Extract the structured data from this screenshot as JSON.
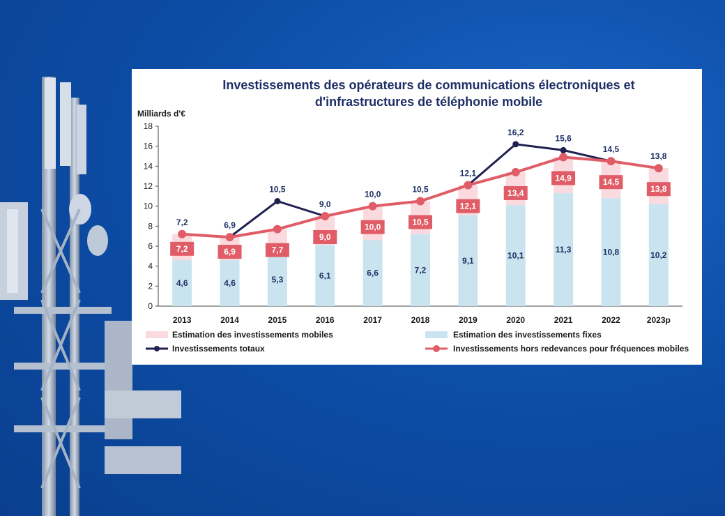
{
  "chart_data": {
    "type": "bar",
    "title_lines": [
      "Investissements des opérateurs de communications électroniques et",
      "d'infrastructures de téléphonie mobile"
    ],
    "ylabel": "Milliards d'€",
    "ylim": [
      0,
      18
    ],
    "yticks": [
      0,
      2,
      4,
      6,
      8,
      10,
      12,
      14,
      16,
      18
    ],
    "categories": [
      "2013",
      "2014",
      "2015",
      "2016",
      "2017",
      "2018",
      "2019",
      "2020",
      "2021",
      "2022",
      "2023p"
    ],
    "stacked_bars": [
      {
        "name": "Estimation des investissements fixes",
        "values": [
          4.6,
          4.6,
          5.3,
          6.1,
          6.6,
          7.2,
          9.1,
          10.1,
          11.3,
          10.8,
          10.2
        ],
        "labels": [
          "4,6",
          "4,6",
          "5,3",
          "6,1",
          "6,6",
          "7,2",
          "9,1",
          "10,1",
          "11,3",
          "10,8",
          "10,2"
        ],
        "color": "#c9e4ee"
      },
      {
        "name": "Estimation des investissements mobiles",
        "totals": [
          7.2,
          6.9,
          7.7,
          9.0,
          10.0,
          10.5,
          12.1,
          13.4,
          14.9,
          14.5,
          13.8
        ],
        "color": "#fadadf"
      }
    ],
    "lines": [
      {
        "name": "Investissements totaux",
        "values": [
          7.2,
          6.9,
          10.5,
          9.0,
          10.0,
          10.5,
          12.1,
          16.2,
          15.6,
          14.5,
          13.8
        ],
        "labels": [
          "7,2",
          "6,9",
          "10,5",
          "9,0",
          "10,0",
          "10,5",
          "12,1",
          "16,2",
          "15,6",
          "14,5",
          "13,8"
        ],
        "color": "#1f2050"
      },
      {
        "name": "Investissements hors redevances pour fréquences mobiles",
        "values": [
          7.2,
          6.9,
          7.7,
          9.0,
          10.0,
          10.5,
          12.1,
          13.4,
          14.9,
          14.5,
          13.8
        ],
        "labels": [
          "7,2",
          "6,9",
          "7,7",
          "9,0",
          "10,0",
          "10,5",
          "12,1",
          "13,4",
          "14,9",
          "14,5",
          "13,8"
        ],
        "color": "#e05c66"
      }
    ],
    "legend": [
      "Estimation des investissements mobiles",
      "Estimation des investissements fixes",
      "Investissements totaux",
      "Investissements hors redevances pour fréquences mobiles"
    ],
    "legend_position": "bottom",
    "grid": false
  }
}
